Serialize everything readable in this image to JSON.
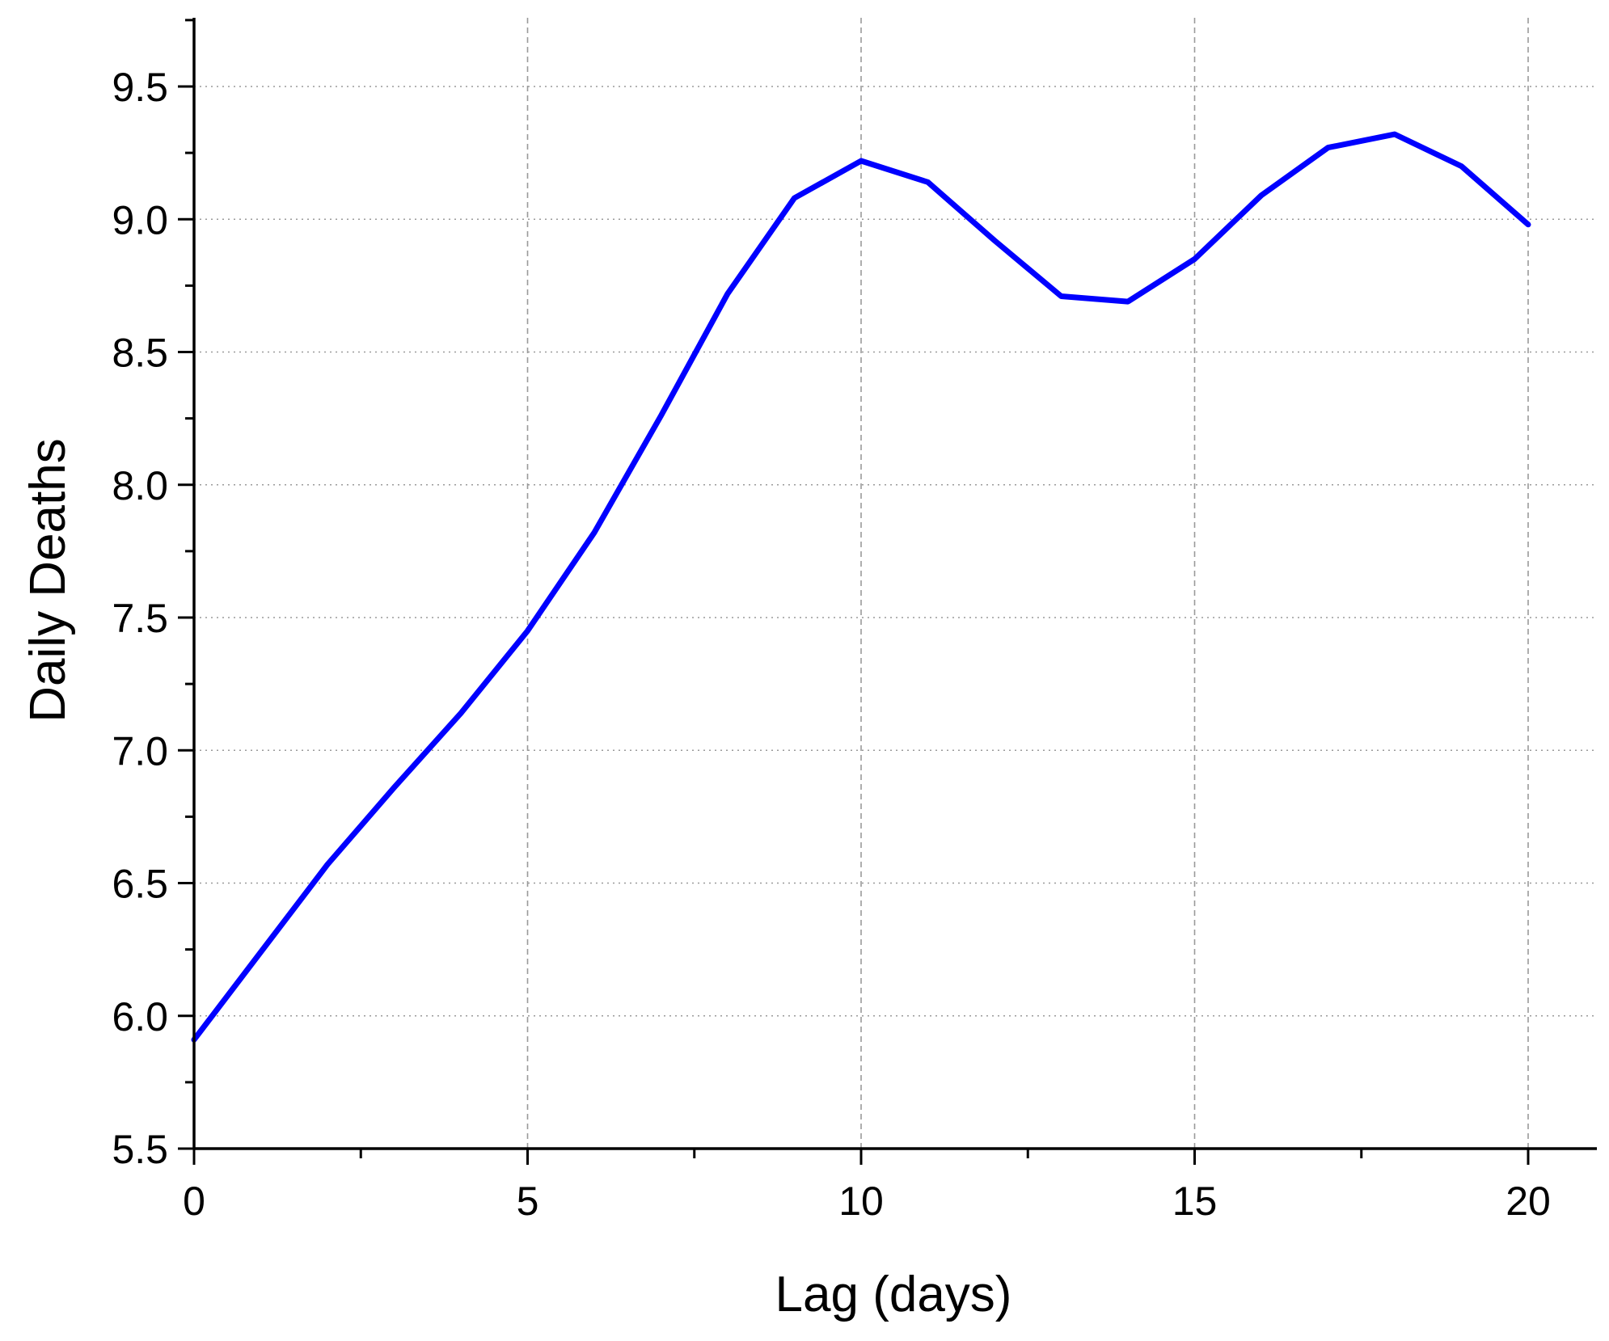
{
  "chart_data": {
    "type": "line",
    "title": "",
    "xlabel": "Lag (days)",
    "ylabel": "Daily Deaths",
    "xlim": [
      0,
      21
    ],
    "ylim": [
      5.5,
      9.75
    ],
    "x_ticks": [
      0,
      5,
      10,
      15,
      20
    ],
    "x_tick_labels": [
      "0",
      "5",
      "10",
      "15",
      "20"
    ],
    "y_ticks": [
      5.5,
      6.0,
      6.5,
      7.0,
      7.5,
      8.0,
      8.5,
      9.0,
      9.5
    ],
    "y_tick_labels": [
      "5.5",
      "6.0",
      "6.5",
      "7.0",
      "7.5",
      "8.0",
      "8.5",
      "9.0",
      "9.5"
    ],
    "x_minor_step": 2.5,
    "y_minor_step": 0.25,
    "grid": true,
    "legend": "none",
    "line_color": "#0000ff",
    "series": [
      {
        "x": [
          0,
          1,
          2,
          3,
          4,
          5,
          6,
          7,
          8,
          9,
          10,
          11,
          12,
          13,
          14,
          15,
          16,
          17,
          18,
          19,
          20
        ],
        "values": [
          5.91,
          6.24,
          6.57,
          6.86,
          7.14,
          7.45,
          7.82,
          8.26,
          8.72,
          9.08,
          9.22,
          9.14,
          8.92,
          8.71,
          8.69,
          8.85,
          9.09,
          9.27,
          9.32,
          9.2,
          8.98
        ]
      }
    ]
  }
}
